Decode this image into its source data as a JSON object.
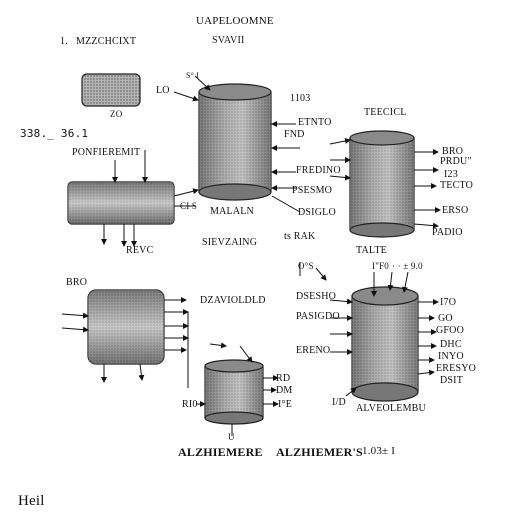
{
  "labels": {
    "top_title": "UAPELOOMNE",
    "top_sub": "SVAVII",
    "num_one": "1.",
    "top_left_caption": "MZZCHCIXT",
    "small_a": "S° I",
    "lo": "LO",
    "twenty": "ZO",
    "num_1103": "1103",
    "etnto": "ETNTO",
    "fnd": "FND",
    "teecicl": "TEECICL",
    "fredino": "FREDINO",
    "peseno": "PSESMO",
    "dsiclo": "DSIGLO",
    "side_338": "338._ 36.1",
    "ponfiev": "PONFIEREMIT",
    "bro": "BRO",
    "prdu": "PRDU\"",
    "i23": "I23",
    "tecto": "TECTO",
    "ersp": "ERSO",
    "padito": "PADIO",
    "ci_s": "CI S",
    "malaln": "MALALN",
    "revc": "REVC",
    "sievzaing": "SIEVZAING",
    "ts_rak": "ts RAK",
    "talte": "TALTE",
    "o_s": "O°S",
    "fo": "I\"F0",
    "nine": "· · ± 9.0",
    "dsesho": "DSESHO",
    "brs_ero": "BRO",
    "dzaviolded": "DZAVIOLDLD",
    "pasigdo": "PASIGDO",
    "t7o": "I7O",
    "go": "GO",
    "gfoo": "GFOO",
    "ereno": "ERENO",
    "bthd": "DHC",
    "ino": "INYO",
    "eseyi": "ERESYO",
    "dshr": "DSIT",
    "dm": "DM",
    "rd": "RD",
    "ie": "I°E",
    "r_o": "RI0",
    "ido": "I/D",
    "alveolembu": "ALVEOLEMBU",
    "alzhiemere": "ALZHIEMERE",
    "alzhiemers": "ALZHIEMER'S",
    "num_right": "1.03± I",
    "u_mark": "U",
    "heil": "Heil"
  },
  "colors": {
    "cylinder_dark": "#5a5a5a",
    "cylinder_mid": "#9a9a9a",
    "cylinder_light": "#d8d8d8",
    "ink": "#111111"
  }
}
